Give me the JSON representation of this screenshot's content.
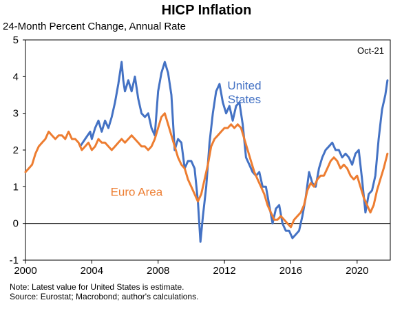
{
  "chart_data": {
    "type": "line",
    "title": "HICP Inflation",
    "subtitle": "24-Month Percent Change, Annual Rate",
    "xlabel": "",
    "ylabel": "",
    "xlim": [
      2000,
      2022
    ],
    "ylim": [
      -1,
      5
    ],
    "x_ticks": [
      2000,
      2004,
      2008,
      2012,
      2016,
      2020
    ],
    "x_tick_labels": [
      "2000",
      "2004",
      "2008",
      "2012",
      "2016",
      "2020"
    ],
    "y_ticks": [
      -1,
      0,
      1,
      2,
      3,
      4,
      5
    ],
    "y_tick_labels": [
      "-1",
      "0",
      "1",
      "2",
      "3",
      "4",
      "5"
    ],
    "corner_label": "Oct-21",
    "zero_line": true,
    "series": [
      {
        "name": "United States",
        "label_lines": [
          "United",
          "States"
        ],
        "color": "#4472c4",
        "points": [
          [
            2003.3,
            2.1
          ],
          [
            2003.6,
            2.3
          ],
          [
            2003.9,
            2.5
          ],
          [
            2004.0,
            2.3
          ],
          [
            2004.2,
            2.6
          ],
          [
            2004.4,
            2.8
          ],
          [
            2004.6,
            2.5
          ],
          [
            2004.8,
            2.8
          ],
          [
            2005.0,
            2.6
          ],
          [
            2005.2,
            2.9
          ],
          [
            2005.4,
            3.3
          ],
          [
            2005.6,
            3.8
          ],
          [
            2005.8,
            4.4
          ],
          [
            2005.9,
            3.9
          ],
          [
            2006.0,
            3.6
          ],
          [
            2006.2,
            3.9
          ],
          [
            2006.4,
            3.6
          ],
          [
            2006.6,
            4.0
          ],
          [
            2006.8,
            3.4
          ],
          [
            2007.0,
            3.0
          ],
          [
            2007.2,
            2.9
          ],
          [
            2007.4,
            3.0
          ],
          [
            2007.6,
            2.6
          ],
          [
            2007.8,
            2.4
          ],
          [
            2008.0,
            3.6
          ],
          [
            2008.2,
            4.1
          ],
          [
            2008.4,
            4.4
          ],
          [
            2008.6,
            4.1
          ],
          [
            2008.8,
            3.5
          ],
          [
            2009.0,
            2.0
          ],
          [
            2009.2,
            2.3
          ],
          [
            2009.4,
            2.2
          ],
          [
            2009.6,
            1.5
          ],
          [
            2009.8,
            1.7
          ],
          [
            2010.0,
            1.7
          ],
          [
            2010.2,
            1.5
          ],
          [
            2010.4,
            0.6
          ],
          [
            2010.55,
            -0.5
          ],
          [
            2010.7,
            0.2
          ],
          [
            2010.9,
            1.0
          ],
          [
            2011.1,
            2.2
          ],
          [
            2011.3,
            3.0
          ],
          [
            2011.5,
            3.6
          ],
          [
            2011.7,
            3.8
          ],
          [
            2011.9,
            3.3
          ],
          [
            2012.1,
            3.0
          ],
          [
            2012.3,
            3.2
          ],
          [
            2012.5,
            2.8
          ],
          [
            2012.7,
            3.2
          ],
          [
            2012.9,
            3.3
          ],
          [
            2013.1,
            2.7
          ],
          [
            2013.3,
            1.8
          ],
          [
            2013.5,
            1.6
          ],
          [
            2013.7,
            1.4
          ],
          [
            2013.9,
            1.3
          ],
          [
            2014.1,
            1.4
          ],
          [
            2014.3,
            1.0
          ],
          [
            2014.5,
            1.0
          ],
          [
            2014.7,
            0.5
          ],
          [
            2014.9,
            0.0
          ],
          [
            2015.1,
            0.4
          ],
          [
            2015.3,
            0.5
          ],
          [
            2015.5,
            0.0
          ],
          [
            2015.7,
            -0.2
          ],
          [
            2015.9,
            -0.2
          ],
          [
            2016.1,
            -0.4
          ],
          [
            2016.3,
            -0.3
          ],
          [
            2016.5,
            -0.2
          ],
          [
            2016.7,
            0.2
          ],
          [
            2016.9,
            0.7
          ],
          [
            2017.1,
            1.4
          ],
          [
            2017.3,
            1.1
          ],
          [
            2017.5,
            1.0
          ],
          [
            2017.7,
            1.5
          ],
          [
            2017.9,
            1.8
          ],
          [
            2018.1,
            2.0
          ],
          [
            2018.3,
            2.1
          ],
          [
            2018.5,
            2.2
          ],
          [
            2018.7,
            2.0
          ],
          [
            2018.9,
            2.0
          ],
          [
            2019.1,
            1.8
          ],
          [
            2019.3,
            1.9
          ],
          [
            2019.5,
            1.8
          ],
          [
            2019.7,
            1.6
          ],
          [
            2019.9,
            1.9
          ],
          [
            2020.1,
            2.0
          ],
          [
            2020.3,
            1.2
          ],
          [
            2020.5,
            0.3
          ],
          [
            2020.7,
            0.8
          ],
          [
            2020.9,
            0.9
          ],
          [
            2021.1,
            1.3
          ],
          [
            2021.3,
            2.3
          ],
          [
            2021.5,
            3.1
          ],
          [
            2021.7,
            3.5
          ],
          [
            2021.83,
            3.9
          ]
        ]
      },
      {
        "name": "Euro Area",
        "label_lines": [
          "Euro Area"
        ],
        "color": "#ed7d31",
        "points": [
          [
            2000.0,
            1.4
          ],
          [
            2000.2,
            1.5
          ],
          [
            2000.4,
            1.6
          ],
          [
            2000.6,
            1.9
          ],
          [
            2000.8,
            2.1
          ],
          [
            2001.0,
            2.2
          ],
          [
            2001.2,
            2.3
          ],
          [
            2001.4,
            2.5
          ],
          [
            2001.6,
            2.4
          ],
          [
            2001.8,
            2.3
          ],
          [
            2002.0,
            2.4
          ],
          [
            2002.2,
            2.4
          ],
          [
            2002.4,
            2.3
          ],
          [
            2002.6,
            2.5
          ],
          [
            2002.8,
            2.3
          ],
          [
            2003.0,
            2.3
          ],
          [
            2003.2,
            2.2
          ],
          [
            2003.4,
            2.0
          ],
          [
            2003.6,
            2.1
          ],
          [
            2003.8,
            2.2
          ],
          [
            2004.0,
            2.0
          ],
          [
            2004.2,
            2.1
          ],
          [
            2004.4,
            2.3
          ],
          [
            2004.6,
            2.2
          ],
          [
            2004.8,
            2.2
          ],
          [
            2005.0,
            2.1
          ],
          [
            2005.2,
            2.0
          ],
          [
            2005.4,
            2.1
          ],
          [
            2005.6,
            2.2
          ],
          [
            2005.8,
            2.3
          ],
          [
            2006.0,
            2.2
          ],
          [
            2006.2,
            2.3
          ],
          [
            2006.4,
            2.4
          ],
          [
            2006.6,
            2.3
          ],
          [
            2006.8,
            2.2
          ],
          [
            2007.0,
            2.1
          ],
          [
            2007.2,
            2.1
          ],
          [
            2007.4,
            2.0
          ],
          [
            2007.6,
            2.1
          ],
          [
            2007.8,
            2.3
          ],
          [
            2008.0,
            2.6
          ],
          [
            2008.2,
            2.9
          ],
          [
            2008.4,
            3.0
          ],
          [
            2008.6,
            2.7
          ],
          [
            2008.8,
            2.4
          ],
          [
            2009.0,
            2.1
          ],
          [
            2009.2,
            1.8
          ],
          [
            2009.4,
            1.6
          ],
          [
            2009.6,
            1.5
          ],
          [
            2009.8,
            1.2
          ],
          [
            2010.0,
            1.0
          ],
          [
            2010.2,
            0.8
          ],
          [
            2010.4,
            0.6
          ],
          [
            2010.6,
            0.8
          ],
          [
            2010.8,
            1.2
          ],
          [
            2011.0,
            1.6
          ],
          [
            2011.2,
            2.1
          ],
          [
            2011.4,
            2.3
          ],
          [
            2011.6,
            2.4
          ],
          [
            2011.8,
            2.5
          ],
          [
            2012.0,
            2.6
          ],
          [
            2012.2,
            2.6
          ],
          [
            2012.4,
            2.7
          ],
          [
            2012.6,
            2.6
          ],
          [
            2012.8,
            2.7
          ],
          [
            2013.0,
            2.6
          ],
          [
            2013.2,
            2.3
          ],
          [
            2013.4,
            2.0
          ],
          [
            2013.6,
            1.7
          ],
          [
            2013.8,
            1.4
          ],
          [
            2014.0,
            1.2
          ],
          [
            2014.2,
            1.0
          ],
          [
            2014.4,
            0.8
          ],
          [
            2014.6,
            0.5
          ],
          [
            2014.8,
            0.3
          ],
          [
            2015.0,
            0.1
          ],
          [
            2015.2,
            0.1
          ],
          [
            2015.4,
            0.2
          ],
          [
            2015.6,
            0.1
          ],
          [
            2015.8,
            0.0
          ],
          [
            2016.0,
            -0.1
          ],
          [
            2016.2,
            0.1
          ],
          [
            2016.4,
            0.2
          ],
          [
            2016.6,
            0.3
          ],
          [
            2016.8,
            0.5
          ],
          [
            2017.0,
            0.9
          ],
          [
            2017.2,
            1.1
          ],
          [
            2017.4,
            1.0
          ],
          [
            2017.6,
            1.2
          ],
          [
            2017.8,
            1.3
          ],
          [
            2018.0,
            1.3
          ],
          [
            2018.2,
            1.5
          ],
          [
            2018.4,
            1.7
          ],
          [
            2018.6,
            1.8
          ],
          [
            2018.8,
            1.7
          ],
          [
            2019.0,
            1.5
          ],
          [
            2019.2,
            1.6
          ],
          [
            2019.4,
            1.5
          ],
          [
            2019.6,
            1.3
          ],
          [
            2019.8,
            1.2
          ],
          [
            2020.0,
            1.3
          ],
          [
            2020.2,
            1.0
          ],
          [
            2020.4,
            0.7
          ],
          [
            2020.6,
            0.5
          ],
          [
            2020.8,
            0.3
          ],
          [
            2021.0,
            0.5
          ],
          [
            2021.2,
            0.9
          ],
          [
            2021.4,
            1.2
          ],
          [
            2021.6,
            1.5
          ],
          [
            2021.83,
            1.9
          ]
        ]
      }
    ]
  },
  "notes": [
    "Note: Latest value for United States is estimate.",
    "Source: Eurostat; Macrobond; author's calculations."
  ]
}
